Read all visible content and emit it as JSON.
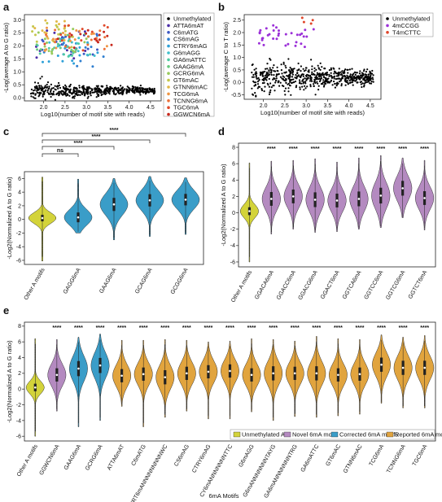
{
  "panel_labels": [
    "a",
    "b",
    "c",
    "d",
    "e"
  ],
  "chart_data": [
    {
      "id": "a",
      "type": "scatter",
      "xlabel": "Log10(number of motif site with reads)",
      "ylabel": "-Log(average A to G ratio)",
      "xlim": [
        1.55,
        4.75
      ],
      "ylim": [
        -0.12,
        3.2
      ],
      "xticks": [
        "2.0",
        "2.5",
        "3.0",
        "3.5",
        "4.0",
        "4.5"
      ],
      "yticks": [
        "0.0",
        "0.5",
        "1.0",
        "1.5",
        "2.0",
        "2.5",
        "3.0"
      ],
      "legend_position": "right",
      "series": [
        {
          "name": "Unmethylated",
          "color": "#000000",
          "x_range": [
            1.7,
            4.6
          ],
          "y_range": [
            -0.05,
            0.6
          ],
          "n": 520
        },
        {
          "name": "ATTA6mAT",
          "color": "#4b2ea8",
          "x_range": [
            1.8,
            3.3
          ],
          "y_range": [
            1.5,
            2.6
          ],
          "n": 14
        },
        {
          "name": "C6mATG",
          "color": "#3c57c4",
          "x_range": [
            1.9,
            3.3
          ],
          "y_range": [
            1.6,
            2.6
          ],
          "n": 14
        },
        {
          "name": "CS6mAG",
          "color": "#2f7fd0",
          "x_range": [
            1.9,
            3.4
          ],
          "y_range": [
            1.2,
            2.4
          ],
          "n": 14
        },
        {
          "name": "CTRY6mAG",
          "color": "#2ea0d8",
          "x_range": [
            1.9,
            3.3
          ],
          "y_range": [
            1.3,
            2.4
          ],
          "n": 14
        },
        {
          "name": "G6mAGG",
          "color": "#3fc0cc",
          "x_range": [
            1.8,
            3.2
          ],
          "y_range": [
            1.4,
            2.3
          ],
          "n": 14
        },
        {
          "name": "GA6mATTC",
          "color": "#4fcba4",
          "x_range": [
            1.8,
            3.2
          ],
          "y_range": [
            1.5,
            2.4
          ],
          "n": 14
        },
        {
          "name": "GAAG6mA",
          "color": "#67c97e",
          "x_range": [
            1.8,
            3.0
          ],
          "y_range": [
            1.6,
            2.5
          ],
          "n": 14
        },
        {
          "name": "GCRG6mA",
          "color": "#97ca5c",
          "x_range": [
            1.8,
            3.0
          ],
          "y_range": [
            1.7,
            2.7
          ],
          "n": 14
        },
        {
          "name": "GT6mAC",
          "color": "#c3c74b",
          "x_range": [
            1.7,
            2.9
          ],
          "y_range": [
            1.9,
            2.9
          ],
          "n": 14
        },
        {
          "name": "GTNN6mAC",
          "color": "#e2b847",
          "x_range": [
            1.7,
            2.8
          ],
          "y_range": [
            2.1,
            3.0
          ],
          "n": 14
        },
        {
          "name": "TCG6mA",
          "color": "#ef9543",
          "x_range": [
            2.0,
            3.5
          ],
          "y_range": [
            1.8,
            2.7
          ],
          "n": 14
        },
        {
          "name": "TCNNG6mA",
          "color": "#ec7038",
          "x_range": [
            2.0,
            3.5
          ],
          "y_range": [
            1.8,
            2.7
          ],
          "n": 14
        },
        {
          "name": "TGC6mA",
          "color": "#e04a2c",
          "x_range": [
            2.0,
            3.6
          ],
          "y_range": [
            1.8,
            2.8
          ],
          "n": 14
        },
        {
          "name": "GGWCN6mA",
          "color": "#c8281d",
          "x_range": [
            2.2,
            3.6
          ],
          "y_range": [
            1.9,
            2.6
          ],
          "n": 14
        }
      ]
    },
    {
      "id": "b",
      "type": "scatter",
      "xlabel": "Log10(number of motif site with reads)",
      "ylabel": "-Log(average C to T ratio)",
      "xlim": [
        1.55,
        4.75
      ],
      "ylim": [
        -0.68,
        2.72
      ],
      "xticks": [
        "2.0",
        "2.5",
        "3.0",
        "3.5",
        "4.0",
        "4.5"
      ],
      "yticks": [
        "-0.5",
        "0.0",
        "0.5",
        "1.0",
        "1.5",
        "2.0",
        "2.5"
      ],
      "legend_position": "top-right",
      "series": [
        {
          "name": "Unmethylated",
          "color": "#000000",
          "x_range": [
            1.7,
            4.6
          ],
          "y_range": [
            -0.5,
            0.9
          ],
          "n": 620
        },
        {
          "name": "4mCCGG",
          "color": "#9b30d8",
          "x_range": [
            1.8,
            3.2
          ],
          "y_range": [
            1.4,
            2.3
          ],
          "n": 34
        },
        {
          "name": "T4mCTTC",
          "color": "#e0452a",
          "x_range": [
            2.8,
            3.2
          ],
          "y_range": [
            2.2,
            2.6
          ],
          "n": 4
        }
      ]
    },
    {
      "id": "c",
      "type": "violin",
      "ylabel": "-Log2(Normalized A to G ratio)",
      "ylim": [
        -6.6,
        7.0
      ],
      "yticks": [
        "-6",
        "-4",
        "-2",
        "0",
        "2",
        "4",
        "6"
      ],
      "categories": [
        "Other A motifs",
        "GAGG6mA",
        "GAAG6mA",
        "GCAG6mA",
        "GCGG6mA"
      ],
      "colors": [
        "#d3d33a",
        "#3a9dc8",
        "#3a9dc8",
        "#3a9dc8",
        "#3a9dc8"
      ],
      "medians": [
        0.2,
        0.3,
        2.2,
        2.8,
        2.9
      ],
      "mins": [
        -6.1,
        -2.0,
        -3.0,
        -2.5,
        -2.2
      ],
      "maxs": [
        6.2,
        5.9,
        6.0,
        6.3,
        6.1
      ],
      "spreads": [
        0.8,
        1.2,
        1.6,
        1.5,
        1.4
      ],
      "comparisons": [
        {
          "from": 0,
          "to": 1,
          "label": "ns"
        },
        {
          "from": 0,
          "to": 2,
          "label": "****"
        },
        {
          "from": 0,
          "to": 3,
          "label": "****"
        },
        {
          "from": 0,
          "to": 4,
          "label": "****"
        }
      ]
    },
    {
      "id": "d",
      "type": "violin",
      "ylabel": "-Log2(Normalized A to G ratio)",
      "ylim": [
        -6.6,
        8.5
      ],
      "yticks": [
        "-6",
        "-4",
        "-2",
        "0",
        "2",
        "4",
        "6",
        "8"
      ],
      "categories": [
        "Other A motifs",
        "GGACA6mA",
        "GGACC6mA",
        "GGACG6mA",
        "GGACT6mA",
        "GGTCA6mA",
        "GGTCC6mA",
        "GGTCG6mA",
        "GGTCT6mA"
      ],
      "colors": [
        "#d3d33a",
        "#b48ac0",
        "#b48ac0",
        "#b48ac0",
        "#b48ac0",
        "#b48ac0",
        "#b48ac0",
        "#b48ac0",
        "#b48ac0"
      ],
      "medians": [
        0.2,
        1.7,
        2.0,
        1.6,
        1.5,
        1.7,
        2.1,
        3.0,
        1.8
      ],
      "mins": [
        -6.0,
        -2.6,
        -2.0,
        -2.4,
        -2.3,
        -2.0,
        -1.8,
        -0.6,
        -2.1
      ],
      "maxs": [
        6.1,
        6.3,
        6.4,
        6.6,
        6.2,
        6.7,
        7.0,
        6.7,
        6.4
      ],
      "spreads": [
        0.8,
        1.4,
        1.4,
        1.5,
        1.4,
        1.5,
        1.6,
        1.5,
        1.4
      ],
      "significance": [
        "",
        "****",
        "****",
        "****",
        "****",
        "****",
        "****",
        "****",
        "****"
      ]
    },
    {
      "id": "e",
      "type": "violin",
      "xlabel": "6mA Motifs",
      "ylabel": "-Log2(Normalized A to G ratio)",
      "ylim": [
        -6.6,
        8.5
      ],
      "yticks": [
        "-6",
        "-4",
        "-2",
        "0",
        "2",
        "4",
        "6",
        "8"
      ],
      "categories": [
        "Other A motifs",
        "GGWCN6mA",
        "GAAG6mA",
        "GCRG6mA",
        "ATTA6mAT",
        "C6mATG",
        "CRT6mANNNNNNNNNWC",
        "CS6mAG",
        "CTRY6mAG",
        "CY6mANNNNNNNTTC",
        "G6mAGG",
        "G6mANNNNNNNTAYG",
        "GA6mANNNNNNNTRG",
        "GA6mATTC",
        "GT6mAC",
        "GTNN6mAC",
        "TCG6mA",
        "TCNNG6mA",
        "TGC6mA"
      ],
      "colors": [
        "#d3d33a",
        "#b48ac0",
        "#3a9dc8",
        "#3a9dc8",
        "#e1a43e",
        "#e1a43e",
        "#e1a43e",
        "#e1a43e",
        "#e1a43e",
        "#e1a43e",
        "#e1a43e",
        "#e1a43e",
        "#e1a43e",
        "#e1a43e",
        "#e1a43e",
        "#e1a43e",
        "#e1a43e",
        "#e1a43e",
        "#e1a43e"
      ],
      "medians": [
        0.2,
        1.8,
        2.6,
        3.0,
        1.7,
        1.9,
        1.5,
        2.0,
        2.2,
        2.3,
        1.8,
        2.0,
        2.0,
        2.0,
        1.8,
        1.9,
        3.1,
        2.7,
        2.7
      ],
      "mins": [
        -6.0,
        -2.8,
        -4.8,
        -4.0,
        -2.2,
        -4.8,
        -3.6,
        -2.8,
        -3.8,
        -3.8,
        -2.9,
        -4.0,
        -3.5,
        -3.6,
        -3.4,
        -3.2,
        -1.8,
        -2.4,
        -2.4
      ],
      "maxs": [
        6.4,
        6.3,
        6.6,
        7.0,
        6.2,
        6.2,
        6.3,
        6.2,
        6.0,
        6.1,
        6.4,
        6.3,
        6.1,
        6.7,
        6.4,
        6.3,
        6.9,
        6.6,
        6.8
      ],
      "spreads": [
        0.8,
        1.4,
        1.6,
        1.6,
        1.4,
        1.4,
        1.5,
        1.4,
        1.4,
        1.4,
        1.4,
        1.5,
        1.4,
        1.5,
        1.4,
        1.4,
        1.5,
        1.5,
        1.5
      ],
      "significance": [
        "",
        "****",
        "****",
        "****",
        "****",
        "****",
        "****",
        "****",
        "****",
        "****",
        "****",
        "****",
        "****",
        "****",
        "****",
        "****",
        "****",
        "****",
        "****"
      ],
      "legend_position": "bottom-right",
      "legend": [
        {
          "name": "Unmethylated A",
          "color": "#d3d33a"
        },
        {
          "name": "Novel 6mA motif",
          "color": "#b48ac0"
        },
        {
          "name": "Corrected 6mA motifs",
          "color": "#3a9dc8"
        },
        {
          "name": "Reported 6mA motifs",
          "color": "#e1a43e"
        }
      ]
    }
  ]
}
